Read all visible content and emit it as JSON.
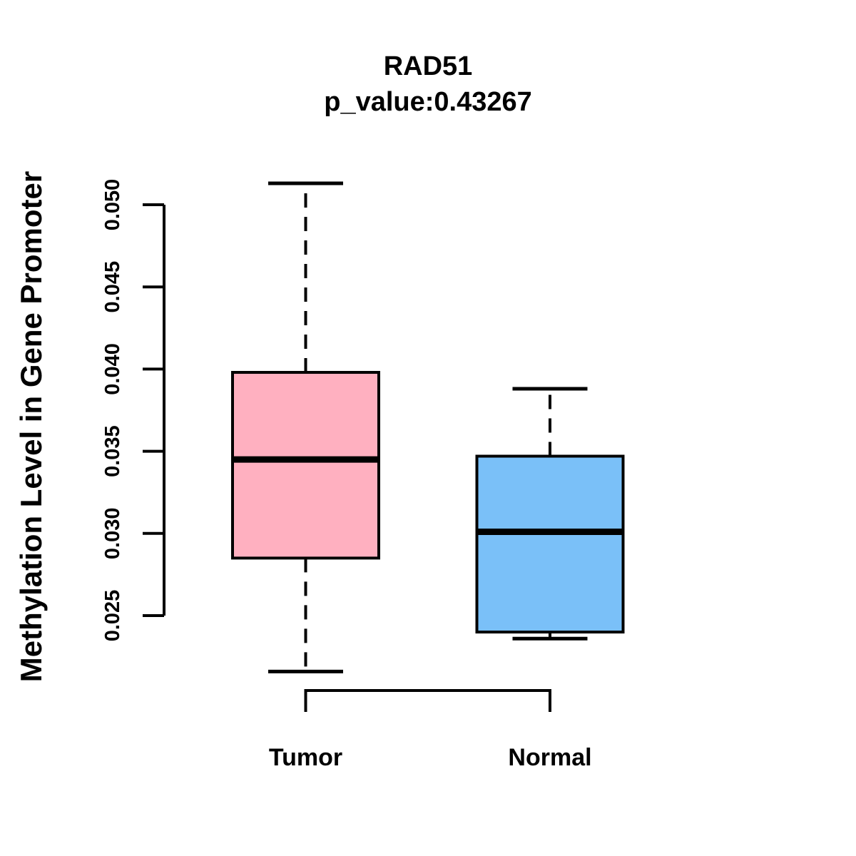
{
  "chart_data": {
    "type": "boxplot",
    "title": "RAD51",
    "subtitle": "p_value:0.43267",
    "ylabel": "Methylation Level in Gene Promoter",
    "xlabel": "",
    "categories": [
      "Tumor",
      "Normal"
    ],
    "axis_range": [
      0.025,
      0.05
    ],
    "yticks": [
      "0.025",
      "0.030",
      "0.035",
      "0.040",
      "0.045",
      "0.050"
    ],
    "grid": false,
    "legend": "none",
    "series": [
      {
        "name": "Tumor",
        "fill_color": "#FFB0C0",
        "whisker_low": 0.0216,
        "q1": 0.0285,
        "median": 0.0345,
        "q3": 0.0398,
        "whisker_high": 0.0513
      },
      {
        "name": "Normal",
        "fill_color": "#7AC0F8",
        "whisker_low": 0.0236,
        "q1": 0.024,
        "median": 0.0301,
        "q3": 0.0347,
        "whisker_high": 0.0388
      }
    ],
    "line_color": "#000000",
    "background_color": "#FFFFFF"
  }
}
